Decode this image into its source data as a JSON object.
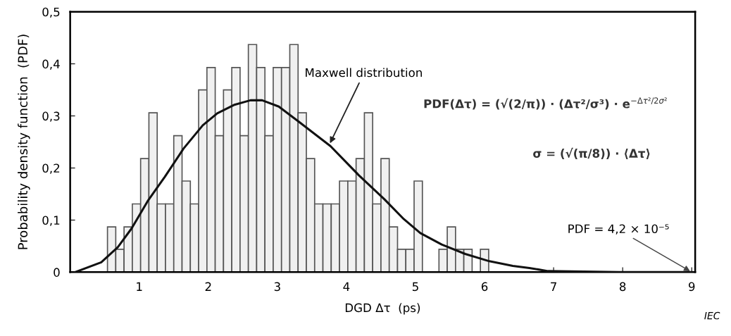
{
  "chart_data": {
    "type": "histogram",
    "xlabel": "DGD Δτ  (ps)",
    "ylabel": "Probability density function  (PDF)",
    "xlim": [
      0,
      9.05
    ],
    "ylim": [
      0,
      0.5
    ],
    "xticks": [
      1,
      2,
      3,
      4,
      5,
      6,
      7,
      8,
      9
    ],
    "yticks": [
      0,
      {
        "value": 0.1,
        "label": "0,1"
      },
      {
        "value": 0.2,
        "label": "0,2"
      },
      {
        "value": 0.3,
        "label": "0,3"
      },
      {
        "value": 0.4,
        "label": "0,4"
      },
      {
        "value": 0.5,
        "label": "0,5"
      }
    ],
    "grid": false,
    "series": [
      {
        "type": "histogram",
        "color": "#f0f0f0",
        "bins": [
          0.54,
          0.66,
          0.78,
          0.9,
          1.02,
          1.14,
          1.26,
          1.38,
          1.5,
          1.62,
          1.74,
          1.86,
          1.98,
          2.1,
          2.22,
          2.34,
          2.46,
          2.58,
          2.7,
          2.82,
          2.94,
          3.06,
          3.18,
          3.3,
          3.42,
          3.54,
          3.66,
          3.78,
          3.9,
          4.02,
          4.14,
          4.26,
          4.38,
          4.5,
          4.62,
          4.74,
          4.86,
          4.98,
          5.1,
          5.22,
          5.34,
          5.46,
          5.58,
          5.7,
          5.82,
          5.94,
          6.06
        ],
        "values": [
          0.087,
          0.044,
          0.087,
          0.131,
          0.218,
          0.306,
          0.131,
          0.131,
          0.262,
          0.175,
          0.131,
          0.35,
          0.393,
          0.262,
          0.35,
          0.393,
          0.262,
          0.437,
          0.393,
          0.262,
          0.393,
          0.393,
          0.437,
          0.306,
          0.218,
          0.131,
          0.131,
          0.131,
          0.175,
          0.175,
          0.218,
          0.306,
          0.131,
          0.218,
          0.087,
          0.044,
          0.044,
          0.175,
          0,
          0,
          0.044,
          0.087,
          0.044,
          0.044,
          0,
          0.044
        ]
      },
      {
        "type": "line",
        "color": "#111111",
        "x": [
          0.07,
          0.45,
          0.69,
          0.89,
          1.13,
          1.37,
          1.64,
          1.92,
          2.13,
          2.37,
          2.61,
          2.78,
          3.02,
          3.29,
          3.77,
          4.18,
          4.55,
          4.83,
          5.07,
          5.38,
          5.72,
          6.07,
          6.41,
          6.65,
          6.92,
          7.95,
          9.0
        ],
        "values": [
          0,
          0.019,
          0.048,
          0.084,
          0.138,
          0.183,
          0.237,
          0.282,
          0.305,
          0.321,
          0.33,
          0.33,
          0.318,
          0.291,
          0.242,
          0.186,
          0.14,
          0.102,
          0.075,
          0.053,
          0.035,
          0.021,
          0.012,
          0.008,
          0.002,
          0,
          0
        ]
      }
    ],
    "annotations": [
      {
        "text": "Maxwell distribution",
        "x": 3.75,
        "y": 0.244
      },
      "PDF(Δτ) = (√(2/π)) · (Δτ²/σ³) · e$^{−Δτ²/2σ²}$",
      "σ = (√(π/8)) · ⟨Δτ⟩",
      {
        "text": "PDF = 4,2 × 10⁻⁵",
        "x": 9.0,
        "y": 0
      },
      "IEC"
    ]
  }
}
